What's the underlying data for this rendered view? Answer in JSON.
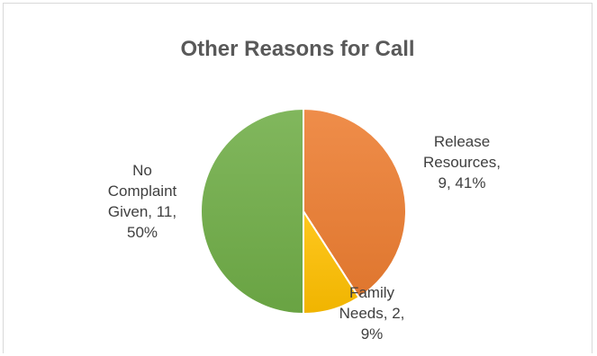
{
  "chart_data": {
    "type": "pie",
    "title": "Other Reasons for Call",
    "slices": [
      {
        "name": "Release Resources",
        "value": 9,
        "percent": "41%",
        "color": "#ED7D31",
        "label_lines": [
          "Release",
          "Resources,",
          "9, 41%"
        ]
      },
      {
        "name": "Family Needs",
        "value": 2,
        "percent": "9%",
        "color": "#FFC000",
        "label_lines": [
          "Family",
          "Needs, 2,",
          "9%"
        ]
      },
      {
        "name": "No Complaint Given",
        "value": 11,
        "percent": "50%",
        "color": "#70AD47",
        "label_lines": [
          "No",
          "Complaint",
          "Given, 11,",
          "50%"
        ]
      }
    ]
  }
}
